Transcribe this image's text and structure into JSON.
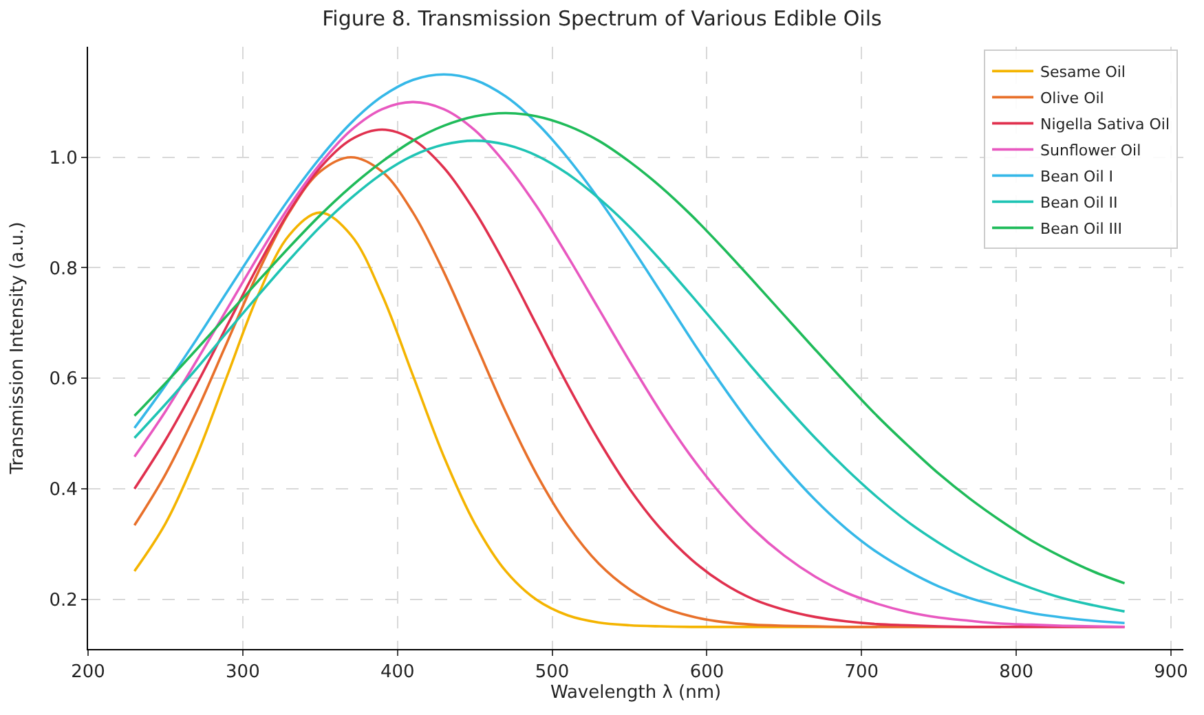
{
  "chart_data": {
    "type": "line",
    "title": "Figure 8. Transmission Spectrum of Various Edible Oils",
    "xlabel": "Wavelength λ (nm)",
    "ylabel": "Transmission Intensity (a.u.)",
    "x": [
      230,
      250,
      270,
      290,
      310,
      330,
      350,
      370,
      390,
      410,
      430,
      450,
      470,
      490,
      510,
      530,
      550,
      570,
      590,
      610,
      630,
      650,
      670,
      690,
      710,
      730,
      750,
      770,
      790,
      810,
      830,
      850,
      870
    ],
    "series": [
      {
        "name": "Sesame Oil",
        "color": "#f4b400",
        "values": [
          0.251,
          0.337,
          0.458,
          0.605,
          0.751,
          0.859,
          0.9,
          0.859,
          0.751,
          0.605,
          0.458,
          0.337,
          0.251,
          0.199,
          0.171,
          0.158,
          0.153,
          0.151,
          0.15,
          0.15,
          0.15,
          0.15,
          0.15,
          0.15,
          0.15,
          null,
          null,
          null,
          null,
          null,
          null,
          null,
          null
        ]
      },
      {
        "name": "Olive Oil",
        "color": "#e8702a",
        "values": [
          0.334,
          0.426,
          0.539,
          0.666,
          0.792,
          0.9,
          0.974,
          1.0,
          0.974,
          0.9,
          0.792,
          0.666,
          0.539,
          0.426,
          0.334,
          0.265,
          0.218,
          0.187,
          0.169,
          0.159,
          0.154,
          0.152,
          0.151,
          0.15,
          0.15,
          0.15,
          0.15,
          0.15,
          0.15,
          null,
          null,
          null,
          null
        ]
      },
      {
        "name": "Nigella Sativa Oil",
        "color": "#e0304e",
        "values": [
          0.4,
          0.488,
          0.588,
          0.696,
          0.804,
          0.902,
          0.981,
          1.032,
          1.05,
          1.032,
          0.981,
          0.902,
          0.804,
          0.696,
          0.588,
          0.488,
          0.4,
          0.328,
          0.272,
          0.23,
          0.2,
          0.181,
          0.168,
          0.16,
          0.155,
          0.153,
          0.151,
          0.15,
          0.15,
          0.15,
          0.15,
          0.15,
          0.15
        ]
      },
      {
        "name": "Sunflower Oil",
        "color": "#e858c0",
        "values": [
          0.458,
          0.54,
          0.631,
          0.726,
          0.821,
          0.911,
          0.988,
          1.049,
          1.087,
          1.1,
          1.087,
          1.049,
          0.988,
          0.911,
          0.821,
          0.726,
          0.631,
          0.54,
          0.458,
          0.387,
          0.327,
          0.279,
          0.241,
          0.212,
          0.192,
          0.177,
          0.167,
          0.161,
          0.156,
          0.154,
          0.152,
          0.151,
          0.15
        ]
      },
      {
        "name": "Bean Oil I",
        "color": "#35b8e8",
        "values": [
          0.51,
          0.587,
          0.67,
          0.757,
          0.843,
          0.925,
          0.999,
          1.062,
          1.11,
          1.14,
          1.15,
          1.14,
          1.11,
          1.062,
          0.999,
          0.925,
          0.843,
          0.757,
          0.67,
          0.587,
          0.51,
          0.441,
          0.38,
          0.328,
          0.285,
          0.251,
          0.223,
          0.202,
          0.187,
          0.175,
          0.167,
          0.161,
          0.157
        ]
      },
      {
        "name": "Bean Oil II",
        "color": "#1fc4b4",
        "values": [
          0.492,
          0.553,
          0.617,
          0.684,
          0.75,
          0.814,
          0.874,
          0.926,
          0.97,
          1.003,
          1.023,
          1.03,
          1.023,
          1.003,
          0.97,
          0.926,
          0.874,
          0.814,
          0.75,
          0.684,
          0.617,
          0.553,
          0.492,
          0.436,
          0.385,
          0.34,
          0.302,
          0.269,
          0.242,
          0.22,
          0.202,
          0.189,
          0.178
        ]
      },
      {
        "name": "Bean Oil III",
        "color": "#1fbb5a",
        "values": [
          0.532,
          0.591,
          0.652,
          0.714,
          0.776,
          0.837,
          0.895,
          0.947,
          0.992,
          1.03,
          1.057,
          1.074,
          1.08,
          1.074,
          1.057,
          1.03,
          0.992,
          0.947,
          0.895,
          0.837,
          0.776,
          0.714,
          0.652,
          0.591,
          0.532,
          0.478,
          0.427,
          0.382,
          0.342,
          0.306,
          0.276,
          0.25,
          0.229
        ]
      }
    ],
    "xlim": [
      200,
      908
    ],
    "xticks": [
      200,
      300,
      400,
      500,
      600,
      700,
      800,
      900
    ],
    "ylim": [
      0.11,
      1.2
    ],
    "yticks": [
      0.2,
      0.4,
      0.6,
      0.8,
      {
        "value": 1,
        "label": "1.0"
      }
    ],
    "grid": true,
    "legend": "top right",
    "marker": "none",
    "line_style": "solid"
  }
}
